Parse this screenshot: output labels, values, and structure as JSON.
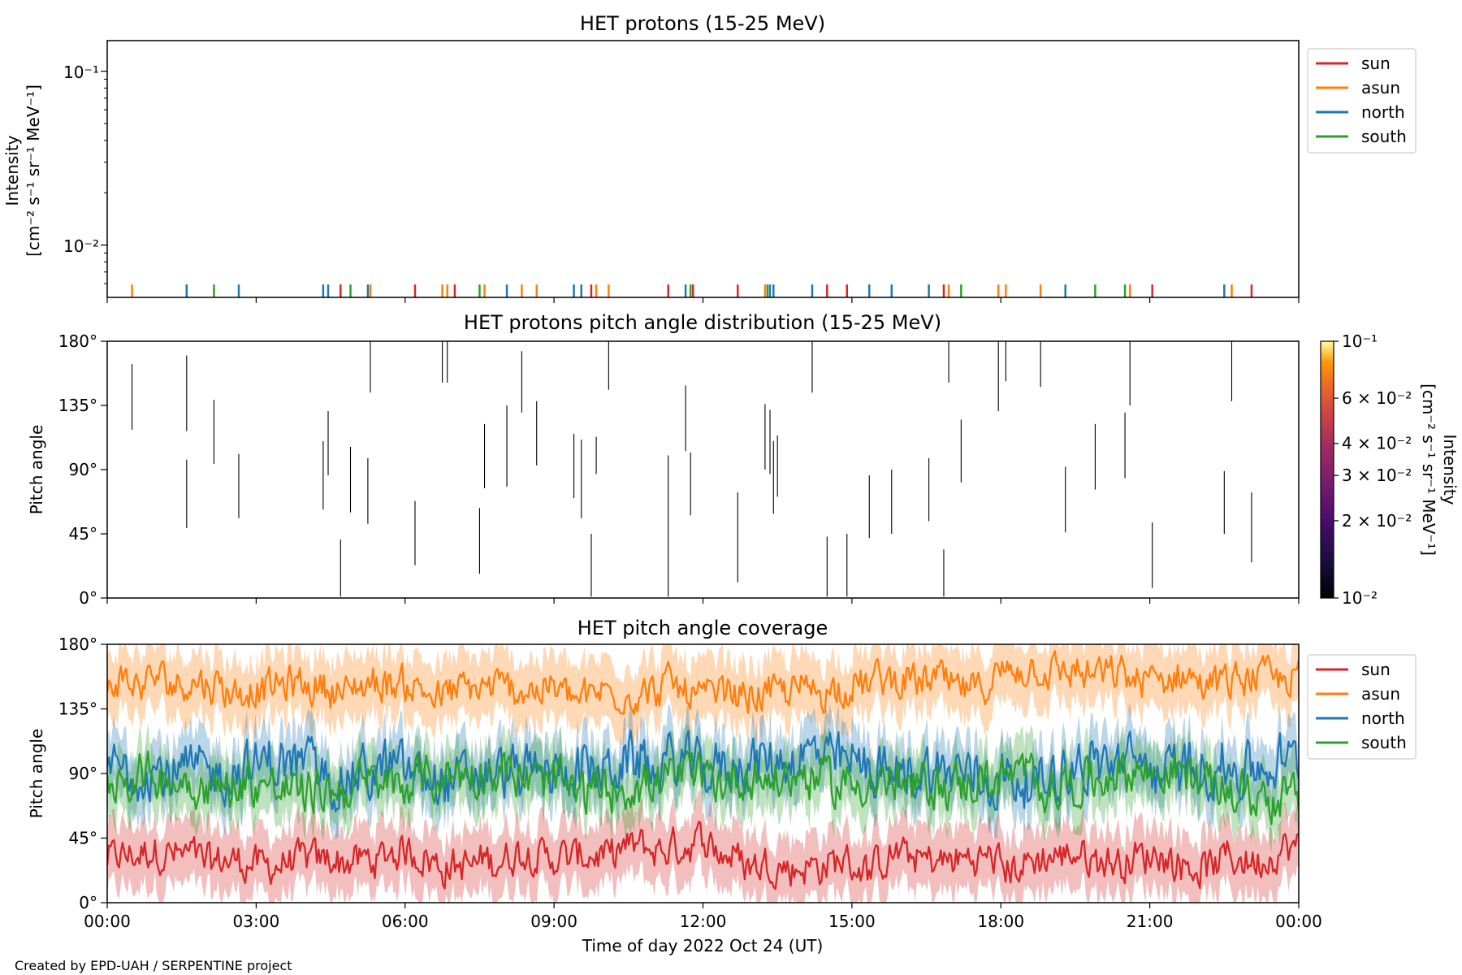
{
  "figure": {
    "xlabel": "Time of day 2022 Oct 24 (UT)",
    "xticks": [
      "00:00",
      "03:00",
      "06:00",
      "09:00",
      "12:00",
      "15:00",
      "18:00",
      "21:00",
      "00:00"
    ],
    "credit": "Created by EPD-UAH / SERPENTINE project"
  },
  "colors": {
    "sun": "#d62728",
    "asun": "#ff7f0e",
    "north": "#1f77b4",
    "south": "#2ca02c"
  },
  "legend": [
    "sun",
    "asun",
    "north",
    "south"
  ],
  "chart_data": [
    {
      "type": "scatter",
      "title": "HET protons (15-25 MeV)",
      "ylabel_line1": "Intensity",
      "ylabel_line2": "[cm⁻² s⁻¹ sr⁻¹ MeV⁻¹]",
      "yscale": "log",
      "ylim": [
        0.005,
        0.15
      ],
      "yticks": [
        "10⁻¹",
        "10⁻²"
      ],
      "xlim_hours": [
        0,
        24
      ],
      "legend_position": "outside-right",
      "series": [
        {
          "name": "sun",
          "t": [
            4.7,
            6.2,
            7.0,
            9.75,
            11.3,
            11.8,
            12.7,
            14.5,
            14.9,
            16.85,
            21.05,
            23.05
          ],
          "y": [
            0.0055,
            0.0055,
            0.0055,
            0.0055,
            0.0055,
            0.0055,
            0.0055,
            0.0055,
            0.0055,
            0.0055,
            0.0055,
            0.0055
          ]
        },
        {
          "name": "asun",
          "t": [
            0.5,
            1.6,
            5.3,
            6.75,
            6.85,
            7.6,
            8.35,
            8.65,
            9.85,
            10.1,
            13.25,
            16.95,
            17.95,
            18.1,
            18.8,
            20.6,
            22.65
          ],
          "y": [
            0.0055,
            0.0055,
            0.0055,
            0.0055,
            0.0055,
            0.0055,
            0.0055,
            0.0055,
            0.0055,
            0.0055,
            0.0055,
            0.0055,
            0.0055,
            0.0055,
            0.0055,
            0.0055,
            0.0055
          ]
        },
        {
          "name": "north",
          "t": [
            1.6,
            2.65,
            4.35,
            4.45,
            5.25,
            8.05,
            9.4,
            9.55,
            11.65,
            13.35,
            13.42,
            14.2,
            15.35,
            15.8,
            16.55,
            19.3,
            22.5
          ],
          "y": [
            0.0055,
            0.0055,
            0.0055,
            0.0055,
            0.0055,
            0.0055,
            0.0055,
            0.0055,
            0.0055,
            0.0055,
            0.0055,
            0.0055,
            0.0055,
            0.0055,
            0.0055,
            0.0055,
            0.0055
          ]
        },
        {
          "name": "south",
          "t": [
            2.15,
            4.9,
            7.5,
            11.75,
            13.3,
            17.2,
            19.9,
            20.5
          ],
          "y": [
            0.0055,
            0.0055,
            0.0055,
            0.0055,
            0.0055,
            0.0055,
            0.0055,
            0.0055
          ]
        }
      ]
    },
    {
      "type": "heatmap",
      "title": "HET protons pitch angle distribution (15-25 MeV)",
      "ylabel": "Pitch angle",
      "ylim": [
        0,
        180
      ],
      "yticks": [
        "180°",
        "135°",
        "90°",
        "45°",
        "0°"
      ],
      "colorbar": {
        "label_line1": "Intensity",
        "label_line2": "[cm⁻² s⁻¹ sr⁻¹ MeV⁻¹]",
        "scale": "log",
        "range": [
          0.01,
          0.1
        ],
        "ticks": [
          "10⁻¹",
          "6 × 10⁻²",
          "4 × 10⁻²",
          "3 × 10⁻²",
          "2 × 10⁻²",
          "10⁻²"
        ],
        "tick_values": [
          0.1,
          0.06,
          0.04,
          0.03,
          0.02,
          0.01
        ],
        "colormap": "inferno"
      },
      "segments": [
        {
          "t": 0.5,
          "pa": [
            118,
            164
          ]
        },
        {
          "t": 1.6,
          "pa": [
            117,
            170
          ]
        },
        {
          "t": 1.6,
          "pa": [
            49,
            97
          ]
        },
        {
          "t": 2.15,
          "pa": [
            94,
            139
          ]
        },
        {
          "t": 2.65,
          "pa": [
            56,
            101
          ]
        },
        {
          "t": 4.35,
          "pa": [
            62,
            110
          ]
        },
        {
          "t": 4.45,
          "pa": [
            86,
            131
          ]
        },
        {
          "t": 4.7,
          "pa": [
            1,
            41
          ]
        },
        {
          "t": 4.9,
          "pa": [
            60,
            106
          ]
        },
        {
          "t": 5.25,
          "pa": [
            52,
            98
          ]
        },
        {
          "t": 5.3,
          "pa": [
            144,
            180
          ]
        },
        {
          "t": 6.2,
          "pa": [
            23,
            68
          ]
        },
        {
          "t": 6.75,
          "pa": [
            151,
            180
          ]
        },
        {
          "t": 6.85,
          "pa": [
            151,
            180
          ]
        },
        {
          "t": 7.5,
          "pa": [
            17,
            63
          ]
        },
        {
          "t": 7.6,
          "pa": [
            77,
            122
          ]
        },
        {
          "t": 8.05,
          "pa": [
            78,
            135
          ]
        },
        {
          "t": 8.35,
          "pa": [
            130,
            173
          ]
        },
        {
          "t": 8.65,
          "pa": [
            93,
            138
          ]
        },
        {
          "t": 9.4,
          "pa": [
            70,
            115
          ]
        },
        {
          "t": 9.55,
          "pa": [
            56,
            111
          ]
        },
        {
          "t": 9.75,
          "pa": [
            1,
            45
          ]
        },
        {
          "t": 9.85,
          "pa": [
            87,
            113
          ]
        },
        {
          "t": 10.1,
          "pa": [
            146,
            180
          ]
        },
        {
          "t": 11.3,
          "pa": [
            1,
            41
          ]
        },
        {
          "t": 11.3,
          "pa": [
            41,
            100
          ]
        },
        {
          "t": 11.65,
          "pa": [
            103,
            149
          ]
        },
        {
          "t": 11.75,
          "pa": [
            58,
            102
          ]
        },
        {
          "t": 12.7,
          "pa": [
            11,
            74
          ]
        },
        {
          "t": 13.25,
          "pa": [
            90,
            136
          ]
        },
        {
          "t": 13.35,
          "pa": [
            87,
            132
          ]
        },
        {
          "t": 13.42,
          "pa": [
            59,
            110
          ]
        },
        {
          "t": 13.5,
          "pa": [
            71,
            114
          ]
        },
        {
          "t": 14.2,
          "pa": [
            144,
            180
          ]
        },
        {
          "t": 14.5,
          "pa": [
            1,
            43
          ]
        },
        {
          "t": 14.9,
          "pa": [
            1,
            45
          ]
        },
        {
          "t": 15.35,
          "pa": [
            42,
            86
          ]
        },
        {
          "t": 15.8,
          "pa": [
            45,
            90
          ]
        },
        {
          "t": 16.55,
          "pa": [
            54,
            98
          ]
        },
        {
          "t": 16.85,
          "pa": [
            1,
            34
          ]
        },
        {
          "t": 16.95,
          "pa": [
            151,
            180
          ]
        },
        {
          "t": 17.2,
          "pa": [
            81,
            125
          ]
        },
        {
          "t": 17.95,
          "pa": [
            131,
            180
          ]
        },
        {
          "t": 18.1,
          "pa": [
            152,
            180
          ]
        },
        {
          "t": 18.8,
          "pa": [
            148,
            180
          ]
        },
        {
          "t": 19.3,
          "pa": [
            46,
            92
          ]
        },
        {
          "t": 19.9,
          "pa": [
            76,
            122
          ]
        },
        {
          "t": 20.5,
          "pa": [
            84,
            130
          ]
        },
        {
          "t": 20.6,
          "pa": [
            135,
            180
          ]
        },
        {
          "t": 21.05,
          "pa": [
            7,
            53
          ]
        },
        {
          "t": 22.5,
          "pa": [
            45,
            89
          ]
        },
        {
          "t": 22.65,
          "pa": [
            138,
            180
          ]
        },
        {
          "t": 23.05,
          "pa": [
            25,
            74
          ]
        }
      ]
    },
    {
      "type": "line",
      "title": "HET pitch angle coverage",
      "ylabel": "Pitch angle",
      "ylim": [
        0,
        180
      ],
      "yticks": [
        "180°",
        "135°",
        "90°",
        "45°",
        "0°"
      ],
      "xlim_hours": [
        0,
        24
      ],
      "legend_position": "outside-right",
      "series": [
        {
          "name": "sun",
          "mean": 30,
          "noise": 20,
          "band": 22
        },
        {
          "name": "asun",
          "mean": 150,
          "noise": 20,
          "band": 22
        },
        {
          "name": "north",
          "mean": 95,
          "noise": 30,
          "band": 20
        },
        {
          "name": "south",
          "mean": 85,
          "noise": 25,
          "band": 20
        }
      ]
    }
  ]
}
